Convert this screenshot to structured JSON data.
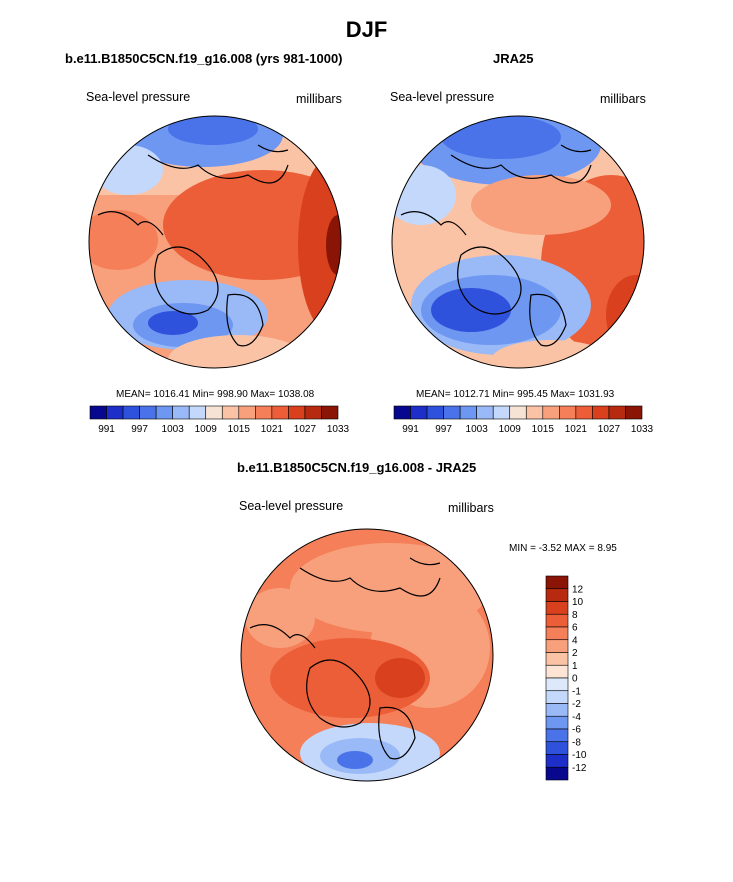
{
  "title": "DJF",
  "panels": [
    {
      "title": "b.e11.B1850C5CN.f19_g16.008 (yrs 981-1000)",
      "left_label": "Sea-level pressure",
      "right_label": "millibars",
      "stats": "MEAN= 1016.41  Min= 998.90  Max= 1038.08",
      "colorbar_ticks": [
        "991",
        "997",
        "1003",
        "1009",
        "1015",
        "1021",
        "1027",
        "1033"
      ]
    },
    {
      "title": "JRA25",
      "left_label": "Sea-level pressure",
      "right_label": "millibars",
      "stats": "MEAN= 1012.71  Min= 995.45  Max= 1031.93",
      "colorbar_ticks": [
        "991",
        "997",
        "1003",
        "1009",
        "1015",
        "1021",
        "1027",
        "1033"
      ]
    },
    {
      "title": "b.e11.B1850C5CN.f19_g16.008 - JRA25",
      "left_label": "Sea-level pressure",
      "right_label": "millibars",
      "stats": "MIN =  -3.52 MAX =   8.95",
      "colorbar_ticks": [
        "12",
        "10",
        "8",
        "6",
        "4",
        "2",
        "1",
        "0",
        "-1",
        "-2",
        "-4",
        "-6",
        "-8",
        "-10",
        "-12"
      ]
    }
  ],
  "colors": {
    "slp_scale": [
      "#08088f",
      "#1d2fc8",
      "#2f52dd",
      "#4a73ea",
      "#6e97f2",
      "#9ab9f7",
      "#c3d8fb",
      "#f7e2d6",
      "#fbc3a5",
      "#f8a07c",
      "#f47f59",
      "#ec5e37",
      "#d8401e",
      "#b72a10",
      "#8a1406"
    ],
    "diff_scale": [
      "#8a1406",
      "#b72a10",
      "#d8401e",
      "#ec5e37",
      "#f47f59",
      "#f8a07c",
      "#fbc3a5",
      "#fde4d4",
      "#dde9fb",
      "#c3d8fb",
      "#9ab9f7",
      "#6e97f2",
      "#4a73ea",
      "#2f52dd",
      "#1d2fc8",
      "#08088f"
    ]
  }
}
